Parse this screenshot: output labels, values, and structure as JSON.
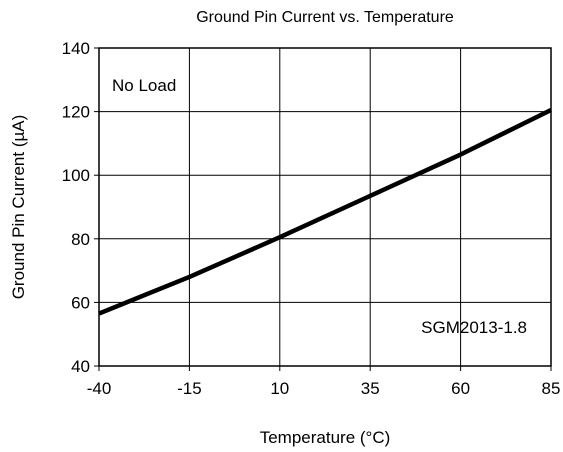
{
  "chart_data": {
    "type": "line",
    "title": "Ground Pin Current vs. Temperature",
    "xlabel": "Temperature (°C)",
    "ylabel": "Ground Pin Current (µA)",
    "xlim": [
      -40,
      85
    ],
    "ylim": [
      40,
      140
    ],
    "xticks": [
      -40,
      -15,
      10,
      35,
      60,
      85
    ],
    "yticks": [
      40,
      60,
      80,
      100,
      120,
      140
    ],
    "xtick_labels": [
      "-40",
      "-15",
      "10",
      "35",
      "60",
      "85"
    ],
    "ytick_labels": [
      "40",
      "60",
      "80",
      "100",
      "120",
      "140"
    ],
    "grid": true,
    "legend": "none",
    "annotations": [
      {
        "text": "No Load",
        "position": "top-left"
      },
      {
        "text": "SGM2013-1.8",
        "position": "bottom-right"
      }
    ],
    "series": [
      {
        "color": "#000000",
        "x": [
          -40,
          -15,
          10,
          35,
          60,
          85
        ],
        "y": [
          56.5,
          68,
          80.5,
          93.5,
          106.5,
          120.5
        ]
      }
    ]
  }
}
